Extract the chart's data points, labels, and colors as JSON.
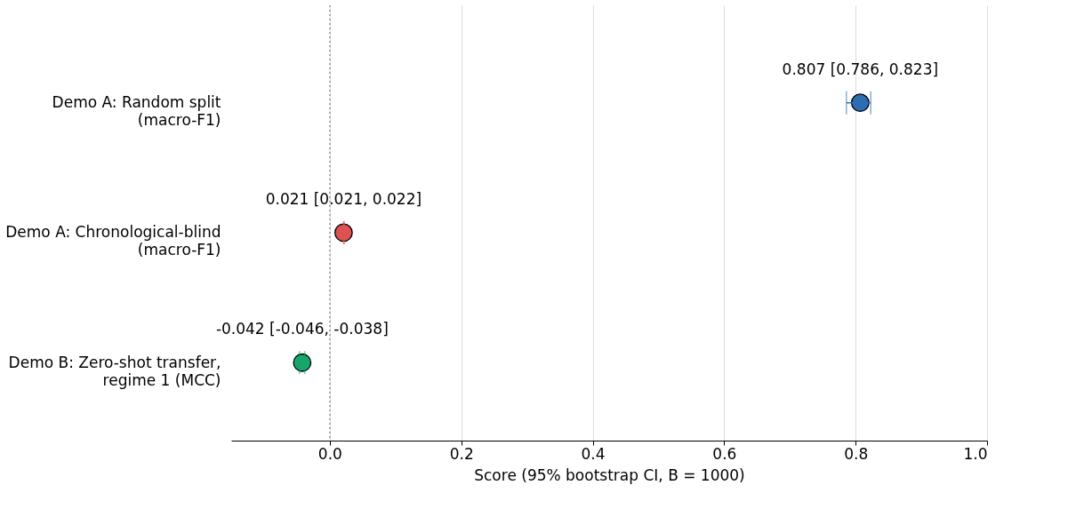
{
  "chart_data": {
    "type": "scatter",
    "orientation": "horizontal",
    "categories": [
      "Demo A: Random split\n(macro-F1)",
      "Demo A: Chronological-blind\n(macro-F1)",
      "Demo B: Zero-shot transfer,\nregime 1 (MCC)"
    ],
    "values": [
      0.807,
      0.021,
      -0.042
    ],
    "colors": [
      "#2f6db3",
      "#e05252",
      "#17a66b"
    ],
    "errors": [
      [
        0.786,
        0.823
      ],
      [
        0.021,
        0.022
      ],
      [
        -0.046,
        -0.038
      ]
    ],
    "value_labels": [
      "0.807  [0.786, 0.823]",
      "0.021  [0.021, 0.022]",
      "-0.042  [-0.046, -0.038]"
    ],
    "xlabel": "Score (95% bootstrap CI, B = 1000)",
    "xlim": [
      -0.15,
      1.0
    ],
    "xticks": [
      {
        "value": 0,
        "label": "0.0"
      },
      0.2,
      0.4,
      0.6,
      0.8,
      {
        "value": 1,
        "label": "1.0"
      }
    ],
    "ref_lines": [
      {
        "axis": "x",
        "value": 0,
        "color": "#999999",
        "line_style": "dotted"
      }
    ],
    "grid": "x",
    "marker": "circle"
  }
}
